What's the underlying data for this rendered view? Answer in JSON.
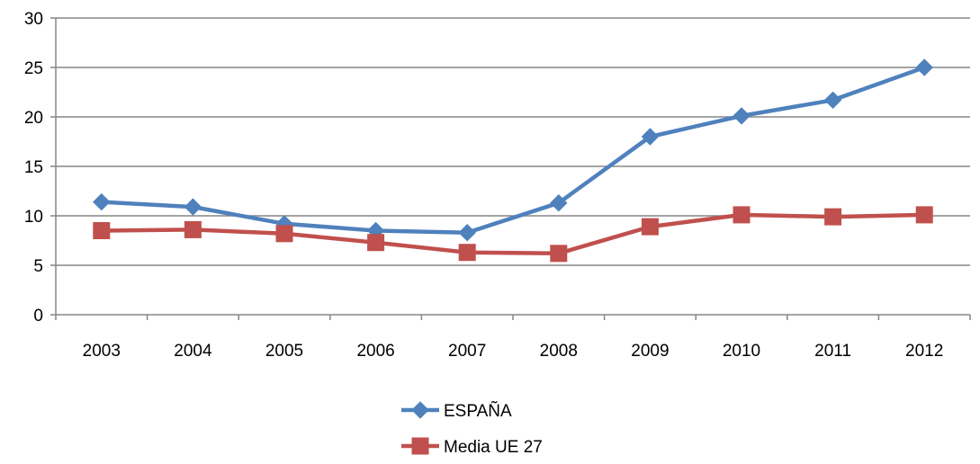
{
  "chart_data": {
    "type": "line",
    "title": "",
    "xlabel": "",
    "ylabel": "",
    "categories": [
      "2003",
      "2004",
      "2005",
      "2006",
      "2007",
      "2008",
      "2009",
      "2010",
      "2011",
      "2012"
    ],
    "ylim": [
      0,
      30
    ],
    "yticks": [
      0,
      5,
      10,
      15,
      20,
      25,
      30
    ],
    "grid": true,
    "legend_position": "bottom",
    "series": [
      {
        "name": "ESPAÑA",
        "color": "#4F81BD",
        "marker": "diamond",
        "values": [
          11.4,
          10.9,
          9.2,
          8.5,
          8.3,
          11.3,
          18.0,
          20.1,
          21.7,
          25.0
        ]
      },
      {
        "name": "Media UE 27",
        "color": "#C0504D",
        "marker": "square",
        "values": [
          8.5,
          8.6,
          8.2,
          7.3,
          6.3,
          6.2,
          8.9,
          10.1,
          9.9,
          10.1
        ]
      }
    ]
  }
}
